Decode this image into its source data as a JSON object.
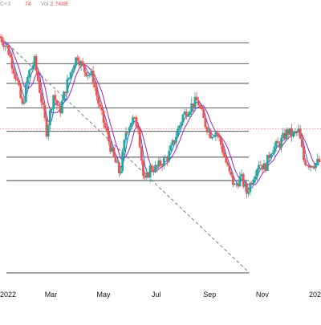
{
  "legend": {
    "pre": "C+3",
    "mid": "74",
    "vol_label": "Vol",
    "vol_value": "2.748B"
  },
  "colors": {
    "up": "#26a69a",
    "down": "#ef5350",
    "ma_fast": "#2962ff",
    "ma_slow": "#9c27b0",
    "fib": "#434651",
    "trend": "#787b86",
    "price_line": "#f7525f",
    "axis_text": "#131722"
  },
  "chart_data": {
    "type": "candlestick",
    "x_ticks": [
      "2022",
      "Mar",
      "May",
      "Jul",
      "Sep",
      "Nov",
      "202"
    ],
    "x_tick_dates": [
      "2022-01-01",
      "2022-03-01",
      "2022-05-01",
      "2022-07-01",
      "2022-09-01",
      "2022-11-01",
      "2023-01-01"
    ],
    "x_range": [
      "2022-01-01",
      "2023-01-08"
    ],
    "y_range": [
      4000,
      6100
    ],
    "fib_levels": [
      4750,
      4940,
      5150,
      5340,
      5540,
      5700,
      5870
    ],
    "price_line": 5170,
    "trendline": {
      "from": [
        "2022-01-01",
        5920
      ],
      "to": [
        "2022-10-17",
        4000
      ]
    },
    "ma_fast_period": 4,
    "ma_slow_period": 8,
    "anchors": [
      [
        "2022-01-01",
        5920
      ],
      [
        "2022-01-10",
        5820
      ],
      [
        "2022-01-20",
        5580
      ],
      [
        "2022-01-27",
        5350
      ],
      [
        "2022-02-03",
        5620
      ],
      [
        "2022-02-10",
        5720
      ],
      [
        "2022-02-17",
        5450
      ],
      [
        "2022-02-24",
        5150
      ],
      [
        "2022-03-04",
        5450
      ],
      [
        "2022-03-11",
        5300
      ],
      [
        "2022-03-18",
        5500
      ],
      [
        "2022-03-28",
        5720
      ],
      [
        "2022-04-01",
        5760
      ],
      [
        "2022-04-08",
        5650
      ],
      [
        "2022-04-18",
        5600
      ],
      [
        "2022-04-26",
        5350
      ],
      [
        "2022-05-06",
        5100
      ],
      [
        "2022-05-12",
        4950
      ],
      [
        "2022-05-20",
        4800
      ],
      [
        "2022-05-27",
        5150
      ],
      [
        "2022-06-03",
        5250
      ],
      [
        "2022-06-10",
        5200
      ],
      [
        "2022-06-17",
        4720
      ],
      [
        "2022-06-24",
        4850
      ],
      [
        "2022-07-01",
        4850
      ],
      [
        "2022-07-08",
        4900
      ],
      [
        "2022-07-15",
        4950
      ],
      [
        "2022-07-22",
        5080
      ],
      [
        "2022-08-01",
        5280
      ],
      [
        "2022-08-12",
        5370
      ],
      [
        "2022-08-18",
        5400
      ],
      [
        "2022-08-26",
        5220
      ],
      [
        "2022-09-02",
        5130
      ],
      [
        "2022-09-09",
        5150
      ],
      [
        "2022-09-16",
        5000
      ],
      [
        "2022-09-23",
        4820
      ],
      [
        "2022-09-30",
        4700
      ],
      [
        "2022-10-07",
        4780
      ],
      [
        "2022-10-14",
        4650
      ],
      [
        "2022-10-21",
        4780
      ],
      [
        "2022-10-28",
        4900
      ],
      [
        "2022-11-04",
        4850
      ],
      [
        "2022-11-11",
        5000
      ],
      [
        "2022-11-21",
        5050
      ],
      [
        "2022-11-30",
        5150
      ],
      [
        "2022-12-06",
        5120
      ],
      [
        "2022-12-13",
        5150
      ],
      [
        "2022-12-19",
        4920
      ],
      [
        "2022-12-26",
        4880
      ],
      [
        "2023-01-06",
        4900
      ]
    ]
  }
}
